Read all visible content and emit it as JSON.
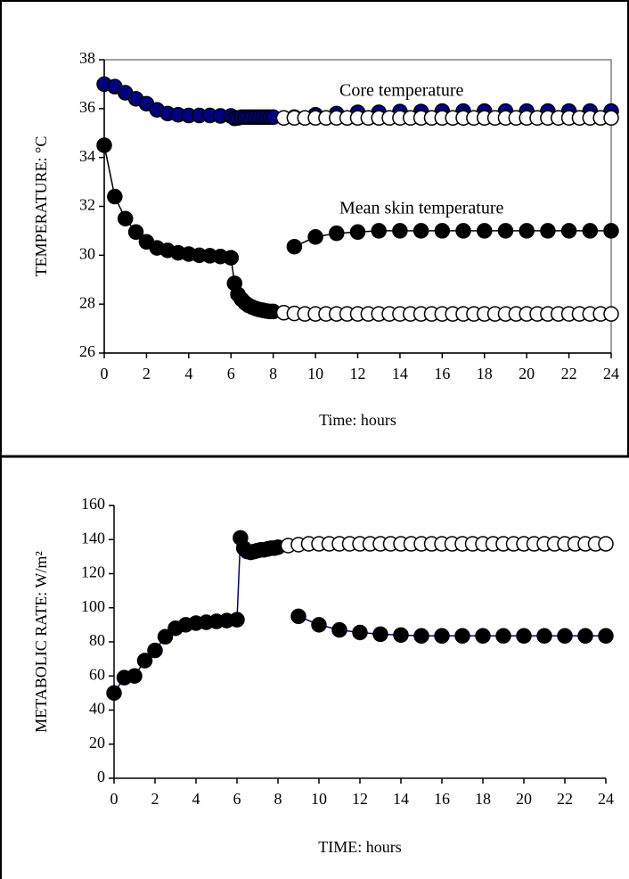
{
  "chart_data": [
    {
      "type": "line",
      "xlabel": "Time: hours",
      "ylabel": "TEMPERATURE:  °C",
      "xlim": [
        0,
        24
      ],
      "ylim": [
        26,
        38
      ],
      "xticks": [
        0,
        2,
        4,
        6,
        8,
        10,
        12,
        14,
        16,
        18,
        20,
        22,
        24
      ],
      "yticks": [
        26,
        28,
        30,
        32,
        34,
        36,
        38
      ],
      "plot_border": true,
      "series": [
        {
          "name": "Core temperature",
          "color": "#000080",
          "line_color": "#000080",
          "marker": "filled",
          "x": [
            0,
            0.5,
            1,
            1.5,
            2,
            2.5,
            3,
            3.5,
            4,
            4.5,
            5,
            5.5,
            6,
            6.17,
            6.33,
            6.5,
            6.67,
            6.83,
            7,
            7.17,
            7.33,
            7.5,
            7.67,
            7.83,
            8,
            8.5,
            9,
            10,
            11,
            12,
            13,
            14,
            15,
            16,
            17,
            18,
            19,
            20,
            21,
            22,
            23,
            24
          ],
          "values": [
            37.0,
            36.9,
            36.65,
            36.4,
            36.2,
            35.95,
            35.8,
            35.75,
            35.72,
            35.72,
            35.72,
            35.7,
            35.7,
            35.6,
            35.62,
            35.65,
            35.65,
            35.65,
            35.65,
            35.65,
            35.65,
            35.65,
            35.65,
            35.65,
            35.65,
            null,
            35.65,
            35.75,
            35.8,
            35.85,
            35.85,
            35.88,
            35.88,
            35.9,
            35.9,
            35.9,
            35.9,
            35.9,
            35.9,
            35.9,
            35.9,
            35.9
          ]
        },
        {
          "color": "#000000",
          "line_color": "#000000",
          "marker": "open",
          "x": [
            8.5,
            9,
            9.5,
            10,
            10.5,
            11,
            11.5,
            12,
            12.5,
            13,
            13.5,
            14,
            14.5,
            15,
            15.5,
            16,
            16.5,
            17,
            17.5,
            18,
            18.5,
            19,
            19.5,
            20,
            20.5,
            21,
            21.5,
            22,
            22.5,
            23,
            23.5,
            24
          ],
          "values": [
            35.62,
            35.62,
            35.62,
            35.62,
            35.62,
            35.62,
            35.62,
            35.62,
            35.62,
            35.62,
            35.62,
            35.62,
            35.62,
            35.62,
            35.62,
            35.62,
            35.62,
            35.62,
            35.62,
            35.62,
            35.62,
            35.62,
            35.62,
            35.62,
            35.62,
            35.62,
            35.62,
            35.62,
            35.62,
            35.62,
            35.62,
            35.62
          ]
        },
        {
          "name": "Mean skin temperature",
          "color": "#000000",
          "line_color": "#000000",
          "marker": "filled",
          "x": [
            0,
            0.5,
            1,
            1.5,
            2,
            2.5,
            3,
            3.5,
            4,
            4.5,
            5,
            5.5,
            6,
            6.17,
            6.33,
            6.5,
            6.67,
            6.83,
            7,
            7.17,
            7.33,
            7.5,
            7.67,
            7.83,
            8,
            8.5,
            9,
            10,
            11,
            12,
            13,
            14,
            15,
            16,
            17,
            18,
            19,
            20,
            21,
            22,
            23,
            24
          ],
          "values": [
            34.5,
            32.4,
            31.5,
            30.95,
            30.55,
            30.3,
            30.2,
            30.1,
            30.05,
            30.0,
            29.98,
            29.95,
            29.9,
            28.85,
            28.4,
            28.2,
            28.05,
            27.95,
            27.88,
            27.82,
            27.78,
            27.75,
            27.72,
            27.7,
            27.7,
            null,
            30.35,
            30.75,
            30.9,
            30.95,
            31.0,
            31.0,
            31.0,
            31.0,
            31.0,
            31.0,
            31.0,
            31.0,
            31.0,
            31.0,
            31.0,
            31.0
          ]
        },
        {
          "color": "#000000",
          "line_color": "#000000",
          "marker": "open",
          "x": [
            8.5,
            9,
            9.5,
            10,
            10.5,
            11,
            11.5,
            12,
            12.5,
            13,
            13.5,
            14,
            14.5,
            15,
            15.5,
            16,
            16.5,
            17,
            17.5,
            18,
            18.5,
            19,
            19.5,
            20,
            20.5,
            21,
            21.5,
            22,
            22.5,
            23,
            23.5,
            24
          ],
          "values": [
            27.65,
            27.62,
            27.6,
            27.6,
            27.6,
            27.6,
            27.6,
            27.6,
            27.6,
            27.6,
            27.6,
            27.6,
            27.6,
            27.6,
            27.6,
            27.6,
            27.6,
            27.6,
            27.6,
            27.6,
            27.6,
            27.6,
            27.6,
            27.6,
            27.6,
            27.6,
            27.6,
            27.6,
            27.6,
            27.6,
            27.6,
            27.6
          ]
        }
      ]
    },
    {
      "type": "line",
      "xlabel": "TIME: hours",
      "ylabel": "METABOLIC RATE:  W/m²",
      "xlim": [
        0,
        24
      ],
      "ylim": [
        0,
        160
      ],
      "xticks": [
        0,
        2,
        4,
        6,
        8,
        10,
        12,
        14,
        16,
        18,
        20,
        22,
        24
      ],
      "yticks": [
        0,
        20,
        40,
        60,
        80,
        100,
        120,
        140,
        160
      ],
      "plot_border": false,
      "series": [
        {
          "color": "#000000",
          "line_color": "#000080",
          "marker": "filled",
          "x": [
            0,
            0.5,
            1,
            1.5,
            2,
            2.5,
            3,
            3.5,
            4,
            4.5,
            5,
            5.5,
            6,
            6.17,
            6.33,
            6.5,
            6.67,
            6.83,
            7,
            7.17,
            7.33,
            7.5,
            7.67,
            7.83,
            8,
            8.5,
            9,
            10,
            11,
            12,
            13,
            14,
            15,
            16,
            17,
            18,
            19,
            20,
            21,
            22,
            23,
            24
          ],
          "values": [
            50,
            59,
            60,
            69,
            75,
            83,
            88,
            90,
            91,
            91.5,
            92,
            92.5,
            93,
            141,
            135,
            133,
            132.5,
            133,
            133.5,
            134,
            134,
            134.5,
            135,
            135,
            135.5,
            null,
            95,
            90,
            87,
            85.5,
            84.5,
            84,
            83.5,
            83.5,
            83.5,
            83.5,
            83.5,
            83.5,
            83.5,
            83.5,
            83.5,
            83.5
          ]
        },
        {
          "color": "#000000",
          "line_color": "#000000",
          "marker": "open",
          "x": [
            8.5,
            9,
            9.5,
            10,
            10.5,
            11,
            11.5,
            12,
            12.5,
            13,
            13.5,
            14,
            14.5,
            15,
            15.5,
            16,
            16.5,
            17,
            17.5,
            18,
            18.5,
            19,
            19.5,
            20,
            20.5,
            21,
            21.5,
            22,
            22.5,
            23,
            23.5,
            24
          ],
          "values": [
            136.5,
            137,
            137.5,
            137.5,
            137.5,
            137.5,
            137.5,
            137.5,
            137.5,
            137.5,
            137.5,
            137.5,
            137.5,
            137.5,
            137.5,
            137.5,
            137.5,
            137.5,
            137.5,
            137.5,
            137.5,
            137.5,
            137.5,
            137.5,
            137.5,
            137.5,
            137.5,
            137.5,
            137.5,
            137.5,
            137.5,
            137.5
          ]
        }
      ]
    }
  ]
}
